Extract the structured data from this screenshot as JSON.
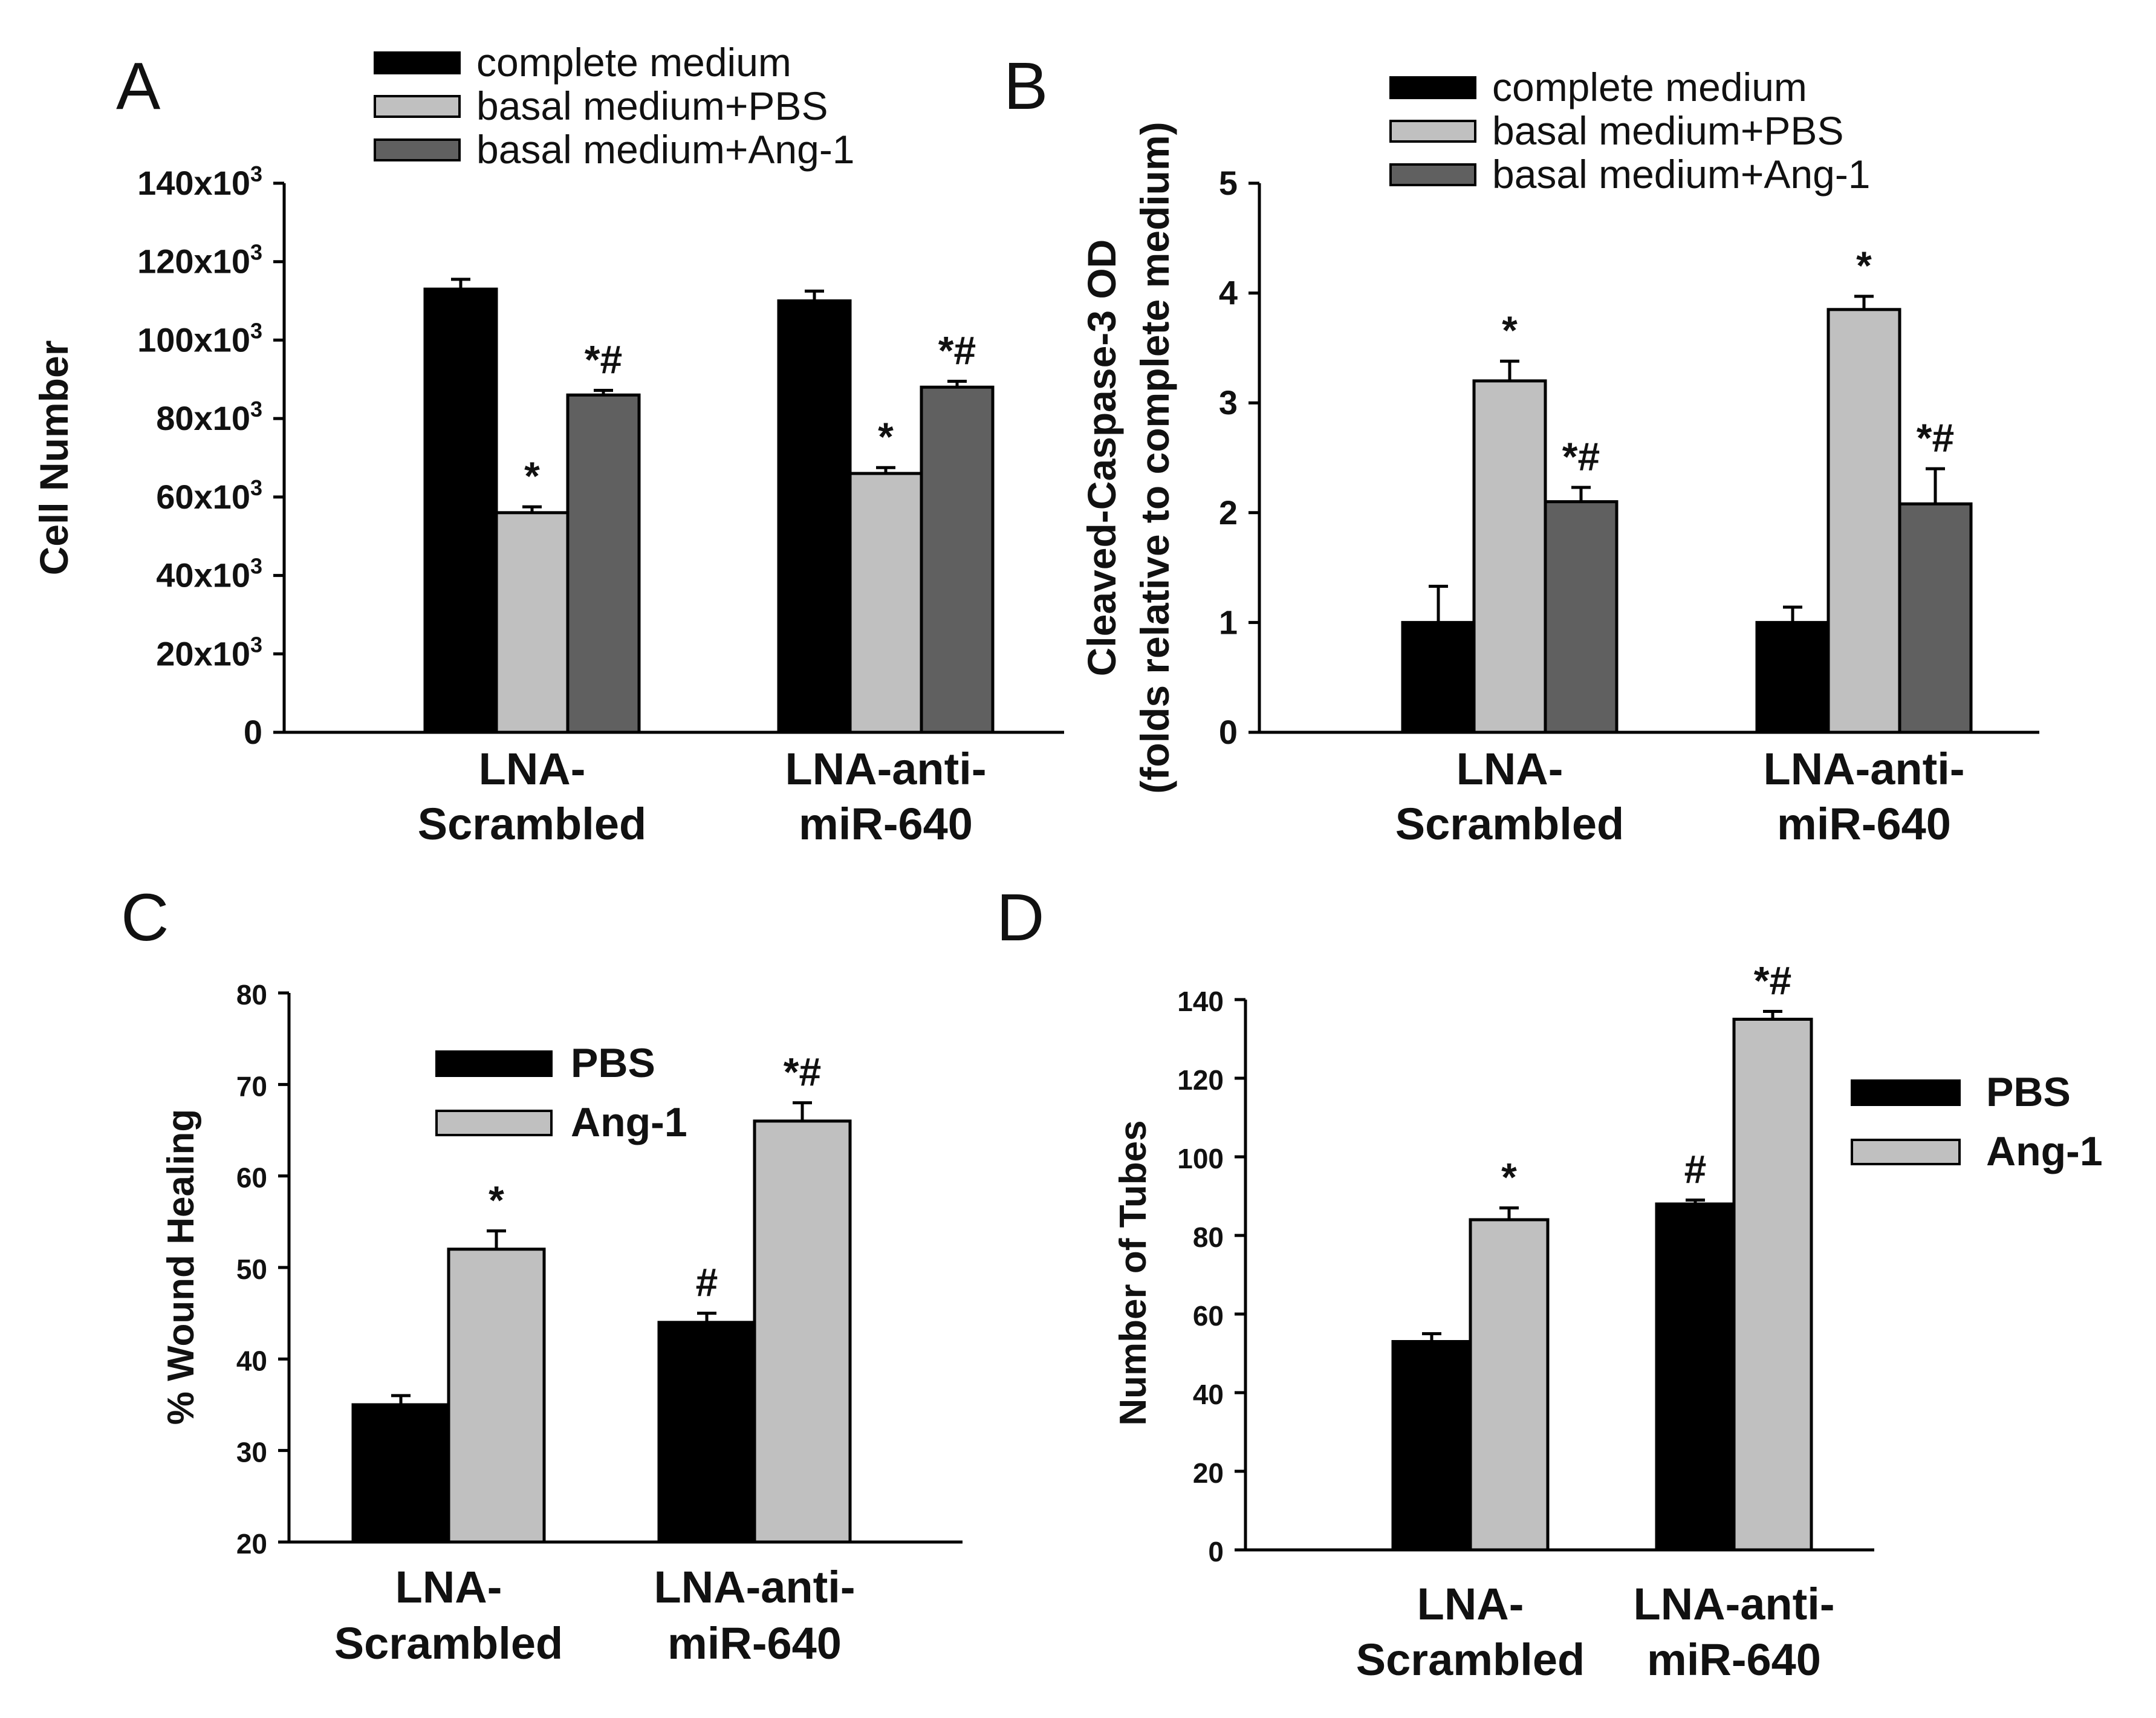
{
  "chart_data": [
    {
      "panel": "A",
      "type": "bar",
      "title": "",
      "xlabel": "",
      "ylabel": "Cell Number",
      "ylim": [
        0,
        140000
      ],
      "yticks": [
        0,
        20000,
        40000,
        60000,
        80000,
        100000,
        120000,
        140000
      ],
      "ytick_labels": [
        {
          "base": "0",
          "sup": ""
        },
        {
          "base": "20x10",
          "sup": "3"
        },
        {
          "base": "40x10",
          "sup": "3"
        },
        {
          "base": "60x10",
          "sup": "3"
        },
        {
          "base": "80x10",
          "sup": "3"
        },
        {
          "base": "100x10",
          "sup": "3"
        },
        {
          "base": "120x10",
          "sup": "3"
        },
        {
          "base": "140x10",
          "sup": "3"
        }
      ],
      "categories": [
        [
          "LNA-",
          "Scrambled"
        ],
        [
          "LNA-anti-",
          "miR-640"
        ]
      ],
      "legend_position": "top",
      "series": [
        {
          "name": "complete medium",
          "color": "#000000",
          "values": [
            113000,
            110000
          ],
          "errors": [
            2500,
            2500
          ],
          "annotations": [
            "",
            ""
          ]
        },
        {
          "name": "basal medium+PBS",
          "color": "#c0c0c0",
          "values": [
            56000,
            66000
          ],
          "errors": [
            1500,
            1500
          ],
          "annotations": [
            "*",
            "*"
          ]
        },
        {
          "name": "basal medium+Ang-1",
          "color": "#606060",
          "values": [
            86000,
            88000
          ],
          "errors": [
            1200,
            1500
          ],
          "annotations": [
            "*#",
            "*#"
          ]
        }
      ]
    },
    {
      "panel": "B",
      "type": "bar",
      "title": "",
      "xlabel": "",
      "ylabel": "Cleaved-Caspase-3 OD",
      "ylabel2": "(folds relative to complete medium)",
      "ylim": [
        0,
        5
      ],
      "yticks": [
        0,
        1,
        2,
        3,
        4,
        5
      ],
      "ytick_labels": [
        {
          "base": "0",
          "sup": ""
        },
        {
          "base": "1",
          "sup": ""
        },
        {
          "base": "2",
          "sup": ""
        },
        {
          "base": "3",
          "sup": ""
        },
        {
          "base": "4",
          "sup": ""
        },
        {
          "base": "5",
          "sup": ""
        }
      ],
      "categories": [
        [
          "LNA-",
          "Scrambled"
        ],
        [
          "LNA-anti-",
          "miR-640"
        ]
      ],
      "legend_position": "top",
      "series": [
        {
          "name": "complete medium",
          "color": "#000000",
          "values": [
            1.0,
            1.0
          ],
          "errors": [
            0.33,
            0.14
          ],
          "annotations": [
            "",
            ""
          ]
        },
        {
          "name": "basal medium+PBS",
          "color": "#c0c0c0",
          "values": [
            3.2,
            3.85
          ],
          "errors": [
            0.18,
            0.12
          ],
          "annotations": [
            "*",
            "*"
          ]
        },
        {
          "name": "basal medium+Ang-1",
          "color": "#606060",
          "values": [
            2.1,
            2.08
          ],
          "errors": [
            0.13,
            0.32
          ],
          "annotations": [
            "*#",
            "*#"
          ]
        }
      ]
    },
    {
      "panel": "C",
      "type": "bar",
      "title": "",
      "xlabel": "",
      "ylabel": "% Wound Healing",
      "ylim": [
        20,
        80
      ],
      "yticks": [
        20,
        30,
        40,
        50,
        60,
        70,
        80
      ],
      "ytick_labels": [
        {
          "base": "20",
          "sup": ""
        },
        {
          "base": "30",
          "sup": ""
        },
        {
          "base": "40",
          "sup": ""
        },
        {
          "base": "50",
          "sup": ""
        },
        {
          "base": "60",
          "sup": ""
        },
        {
          "base": "70",
          "sup": ""
        },
        {
          "base": "80",
          "sup": ""
        }
      ],
      "categories": [
        [
          "LNA-",
          "Scrambled"
        ],
        [
          "LNA-anti-",
          "miR-640"
        ]
      ],
      "legend_position": "top-center",
      "series": [
        {
          "name": "PBS",
          "color": "#000000",
          "values": [
            35,
            44
          ],
          "errors": [
            1.0,
            1.0
          ],
          "annotations": [
            "",
            "#"
          ]
        },
        {
          "name": "Ang-1",
          "color": "#c0c0c0",
          "values": [
            52,
            66
          ],
          "errors": [
            2.0,
            2.0
          ],
          "annotations": [
            "*",
            "*#"
          ]
        }
      ]
    },
    {
      "panel": "D",
      "type": "bar",
      "title": "",
      "xlabel": "",
      "ylabel": "Number of Tubes",
      "ylim": [
        0,
        140
      ],
      "yticks": [
        0,
        20,
        40,
        60,
        80,
        100,
        120,
        140
      ],
      "ytick_labels": [
        {
          "base": "0",
          "sup": ""
        },
        {
          "base": "20",
          "sup": ""
        },
        {
          "base": "40",
          "sup": ""
        },
        {
          "base": "60",
          "sup": ""
        },
        {
          "base": "80",
          "sup": ""
        },
        {
          "base": "100",
          "sup": ""
        },
        {
          "base": "120",
          "sup": ""
        },
        {
          "base": "140",
          "sup": ""
        }
      ],
      "categories": [
        [
          "LNA-",
          "Scrambled"
        ],
        [
          "LNA-anti-",
          "miR-640"
        ]
      ],
      "legend_position": "right",
      "series": [
        {
          "name": "PBS",
          "color": "#000000",
          "values": [
            53,
            88
          ],
          "errors": [
            2.0,
            1.0
          ],
          "annotations": [
            "",
            "#"
          ]
        },
        {
          "name": "Ang-1",
          "color": "#c0c0c0",
          "values": [
            84,
            135
          ],
          "errors": [
            3.0,
            2.0
          ],
          "annotations": [
            "*",
            "*#"
          ]
        }
      ]
    }
  ],
  "panels": {
    "a": {
      "letter": "A"
    },
    "b": {
      "letter": "B"
    },
    "c": {
      "letter": "C"
    },
    "d": {
      "letter": "D"
    }
  }
}
